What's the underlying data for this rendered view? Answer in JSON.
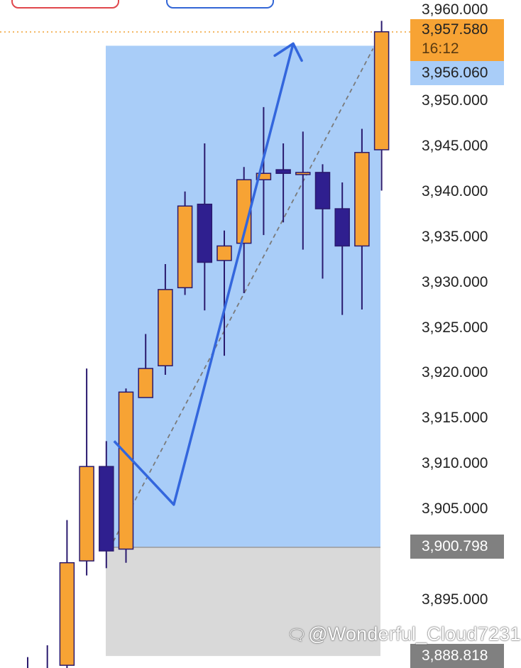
{
  "chart_data": {
    "type": "candlestick",
    "title": "",
    "y_axis": {
      "ticks": [
        "3,960.000",
        "3,950.000",
        "3,945.000",
        "3,940.000",
        "3,935.000",
        "3,930.000",
        "3,925.000",
        "3,920.000",
        "3,915.000",
        "3,910.000",
        "3,905.000",
        "3,895.000"
      ],
      "range": [
        3887.5,
        3961.1
      ]
    },
    "price_tags": {
      "current": {
        "price": 3957.58,
        "label": "3,957.580",
        "countdown": "16:12",
        "color": "#f7a334"
      },
      "target": {
        "price": 3956.06,
        "label": "3,956.060",
        "color": "#a9cdf8"
      },
      "stop": {
        "price": 3900.798,
        "label": "3,900.798",
        "color": "#808080"
      },
      "low": {
        "price": 3888.818,
        "label": "3,888.818",
        "color": "#808080"
      }
    },
    "long_position": {
      "entry": 3900.798,
      "target": 3956.06,
      "stop": 3888.818,
      "profit_color": "#a9cdf8",
      "loss_color": "#d9d9d9"
    },
    "colors": {
      "bullish": "#f7a334",
      "bearish": "#2f1f8f",
      "outline": "#2a1a6e",
      "projection": "#3366dd"
    },
    "candles": [
      {
        "open": 3886.2,
        "high": 3888.7,
        "low": 3886.0,
        "close": 3886.0
      },
      {
        "open": 3886.6,
        "high": 3890.0,
        "low": 3885.6,
        "close": 3886.2
      },
      {
        "open": 3887.8,
        "high": 3903.8,
        "low": 3887.4,
        "close": 3899.1
      },
      {
        "open": 3899.3,
        "high": 3920.5,
        "low": 3897.7,
        "close": 3909.7
      },
      {
        "open": 3909.7,
        "high": 3912.5,
        "low": 3898.5,
        "close": 3900.4
      },
      {
        "open": 3900.6,
        "high": 3918.3,
        "low": 3899.1,
        "close": 3917.9
      },
      {
        "open": 3917.3,
        "high": 3924.3,
        "low": 3917.6,
        "close": 3920.5
      },
      {
        "open": 3920.8,
        "high": 3932.0,
        "low": 3919.8,
        "close": 3929.2
      },
      {
        "open": 3929.4,
        "high": 3940.0,
        "low": 3928.6,
        "close": 3938.4
      },
      {
        "open": 3938.6,
        "high": 3945.3,
        "low": 3926.9,
        "close": 3932.2
      },
      {
        "open": 3932.4,
        "high": 3935.7,
        "low": 3921.9,
        "close": 3934.0
      },
      {
        "open": 3934.3,
        "high": 3942.7,
        "low": 3928.8,
        "close": 3941.3
      },
      {
        "open": 3941.3,
        "high": 3949.3,
        "low": 3935.2,
        "close": 3942.0
      },
      {
        "open": 3942.4,
        "high": 3945.3,
        "low": 3936.6,
        "close": 3942.0
      },
      {
        "open": 3942.1,
        "high": 3946.6,
        "low": 3933.6,
        "close": 3942.1
      },
      {
        "open": 3942.1,
        "high": 3943.0,
        "low": 3930.4,
        "close": 3938.1
      },
      {
        "open": 3938.1,
        "high": 3941.0,
        "low": 3926.4,
        "close": 3934.0
      },
      {
        "open": 3934.0,
        "high": 3946.9,
        "low": 3927.0,
        "close": 3944.3
      },
      {
        "open": 3944.6,
        "high": 3958.8,
        "low": 3940.1,
        "close": 3957.6
      }
    ]
  },
  "watermark": {
    "icon": "speech-bubble-icon",
    "text": "@Wonderful_Cloud7231"
  }
}
